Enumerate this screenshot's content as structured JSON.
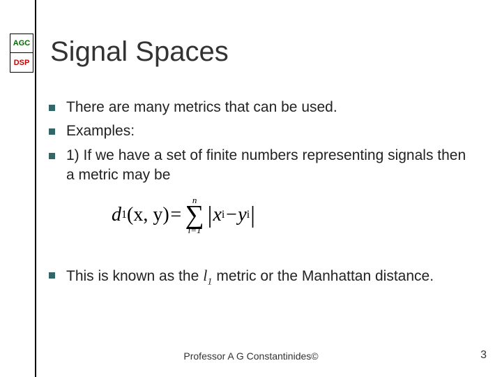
{
  "badges": {
    "top": "AGC",
    "bottom": "DSP"
  },
  "title": "Signal Spaces",
  "bullets": [
    "There are many metrics that can be used.",
    "Examples:",
    "1) If we have a set of finite numbers representing signals then a metric may be"
  ],
  "formula": {
    "lhs_fn": "d",
    "lhs_sub": "1",
    "lhs_args": "(x, y)",
    "eq": " = ",
    "sum_top": "n",
    "sum_bottom": "i=1",
    "term_x": "x",
    "term_x_sub": "i",
    "minus": " − ",
    "term_y": "y",
    "term_y_sub": "i"
  },
  "bullet4_pre": "This is known as the ",
  "l1_symbol": "l",
  "l1_sub": "1",
  "bullet4_post": " metric or the Manhattan distance.",
  "footer": "Professor A G Constantinides©",
  "slide_number": "3",
  "colors": {
    "bullet": "#336666",
    "agc": "#006600",
    "dsp": "#cc0000"
  }
}
